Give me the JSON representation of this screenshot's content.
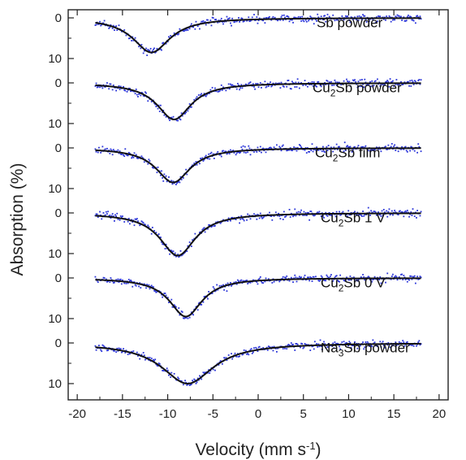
{
  "chart_data": {
    "type": "scatter",
    "xlabel": "Velocity (mm s",
    "xlabel_sup": "-1",
    "xlabel_close": ")",
    "ylabel": "Absorption (%)",
    "xlim": [
      -21,
      21
    ],
    "xticks": [
      "-20",
      "-15",
      "-10",
      "-5",
      "0",
      "5",
      "10",
      "15",
      "20"
    ],
    "yticks_per_panel": [
      "0",
      "10"
    ],
    "panel_ylim": [
      -2,
      14
    ],
    "data_x_range": [
      -18,
      18
    ],
    "point_color": "#2b35d9",
    "fit_color": "#111111",
    "series": [
      {
        "label": "Sb powder",
        "label_parts": [
          "Sb powder"
        ],
        "center": -11.8,
        "depth": 8.5,
        "fwhm": 5.0
      },
      {
        "label": "Cu2Sb powder",
        "label_parts": [
          "Cu",
          "2",
          "Sb powder"
        ],
        "center": -9.3,
        "depth": 9.0,
        "fwhm": 4.6
      },
      {
        "label": "Cu2Sb film",
        "label_parts": [
          "Cu",
          "2",
          "Sb film"
        ],
        "center": -9.4,
        "depth": 8.5,
        "fwhm": 4.6
      },
      {
        "label": "Cu2Sb 1 V",
        "label_parts": [
          "Cu",
          "2",
          "Sb 1 V"
        ],
        "center": -8.9,
        "depth": 10.5,
        "fwhm": 4.8
      },
      {
        "label": "Cu2Sb 0 V",
        "label_parts": [
          "Cu",
          "2",
          "Sb 0 V"
        ],
        "center": -8.0,
        "depth": 9.5,
        "fwhm": 4.4
      },
      {
        "label": "Na3Sb powder",
        "label_parts": [
          "Na",
          "3",
          "Sb powder"
        ],
        "center": -7.8,
        "depth": 10.0,
        "fwhm": 7.0
      }
    ]
  }
}
